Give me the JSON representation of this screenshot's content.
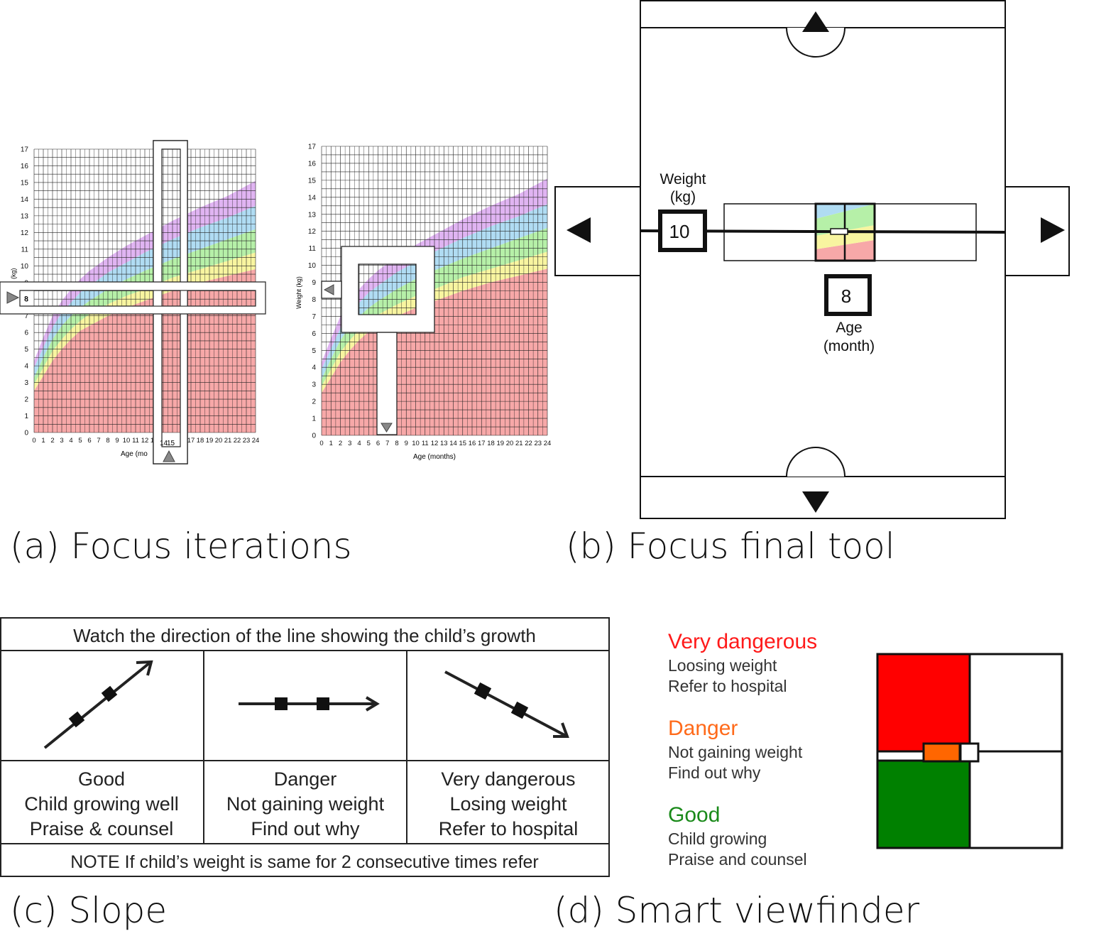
{
  "captions": {
    "a": "(a) Focus iterations",
    "b": "(b) Focus final tool",
    "c": "(c) Slope",
    "d": "(d) Smart viewfinder"
  },
  "growth_chart": {
    "y_ticks": [
      "0",
      "1",
      "2",
      "3",
      "4",
      "5",
      "6",
      "7",
      "8",
      "9",
      "10",
      "11",
      "12",
      "13",
      "14",
      "15",
      "16",
      "17"
    ],
    "x_ticks": [
      "0",
      "1",
      "2",
      "3",
      "4",
      "5",
      "6",
      "7",
      "8",
      "9",
      "10",
      "11",
      "12",
      "13",
      "14",
      "15",
      "16",
      "17",
      "18",
      "19",
      "20",
      "21",
      "22",
      "23",
      "24"
    ],
    "x_label": "Age (months)",
    "y_label": "Weight (kg)",
    "chart1_x_label_visible": "Age (mo",
    "chart1_y_label_visible": "(kg)",
    "chart1_cross_x_ticks": [
      "14",
      "15",
      "1("
    ],
    "band_colors": [
      "#f7a8a8",
      "#f8f5a0",
      "#b6f0a8",
      "#b0dcf3",
      "#e0b4f2"
    ],
    "curves": {
      "ages": [
        0,
        1,
        2,
        3,
        4,
        5,
        6,
        8,
        10,
        12,
        15,
        18,
        21,
        24
      ],
      "lower": [
        2.5,
        3.4,
        4.3,
        5.0,
        5.6,
        6.1,
        6.4,
        7.0,
        7.5,
        7.9,
        8.5,
        9.0,
        9.4,
        9.8
      ],
      "b1": [
        2.9,
        3.9,
        4.9,
        5.6,
        6.2,
        6.7,
        7.1,
        7.7,
        8.2,
        8.6,
        9.3,
        9.8,
        10.3,
        10.8
      ],
      "b2": [
        3.3,
        4.5,
        5.6,
        6.4,
        7.0,
        7.5,
        7.9,
        8.6,
        9.2,
        9.7,
        10.4,
        11.0,
        11.6,
        12.2
      ],
      "b3": [
        3.9,
        5.1,
        6.3,
        7.2,
        7.8,
        8.4,
        8.8,
        9.6,
        10.2,
        10.8,
        11.6,
        12.3,
        12.9,
        13.6
      ],
      "upper": [
        4.3,
        5.7,
        7.0,
        7.9,
        8.6,
        9.2,
        9.7,
        10.5,
        11.2,
        11.8,
        12.7,
        13.5,
        14.2,
        15.1
      ]
    }
  },
  "focus_tool": {
    "weight_label_line1": "Weight",
    "weight_label_line2": "(kg)",
    "weight_value": "10",
    "age_value": "8",
    "age_label_line1": "Age",
    "age_label_line2": "(month)"
  },
  "slope": {
    "header": "Watch the direction of the line showing the child’s growth",
    "columns": [
      {
        "lines": [
          "Good",
          "Child growing well",
          "Praise & counsel"
        ]
      },
      {
        "lines": [
          "Danger",
          "Not gaining weight",
          "Find out why"
        ]
      },
      {
        "lines": [
          "Very dangerous",
          "Losing weight",
          "Refer to hospital"
        ]
      }
    ],
    "note": "NOTE If child’s weight is same for 2 consecutive times refer"
  },
  "viewfinder": {
    "legend": [
      {
        "title": "Very dangerous",
        "color": "#ff1a1a",
        "line1": "Loosing weight",
        "line2": "Refer to hospital"
      },
      {
        "title": "Danger",
        "color": "#ff6a1a",
        "line1": "Not gaining weight",
        "line2": "Find out why"
      },
      {
        "title": "Good",
        "color": "#1a8a1a",
        "line1": "Child growing",
        "line2": "Praise and counsel"
      }
    ],
    "colors": {
      "red": "#ff0000",
      "green": "#008000",
      "orange": "#ff6600"
    }
  }
}
